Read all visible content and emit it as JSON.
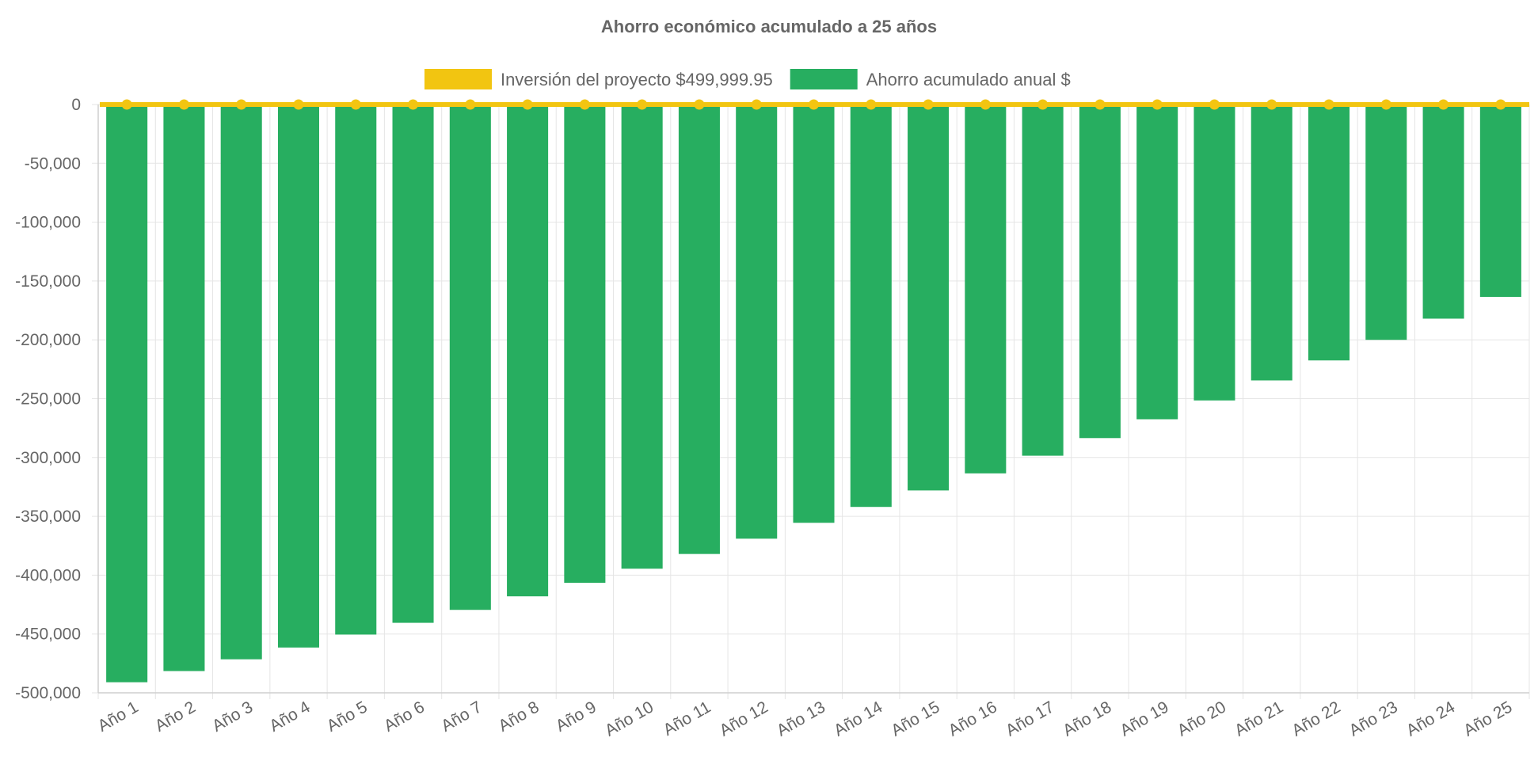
{
  "chart_data": {
    "type": "bar",
    "title": "Ahorro económico acumulado a 25 años",
    "xlabel": "",
    "ylabel": "",
    "categories": [
      "Año 1",
      "Año 2",
      "Año 3",
      "Año 4",
      "Año 5",
      "Año 6",
      "Año 7",
      "Año 8",
      "Año 9",
      "Año 10",
      "Año 11",
      "Año 12",
      "Año 13",
      "Año 14",
      "Año 15",
      "Año 16",
      "Año 17",
      "Año 18",
      "Año 19",
      "Año 20",
      "Año 21",
      "Año 22",
      "Año 23",
      "Año 24",
      "Año 25"
    ],
    "ylim": [
      -500000,
      0
    ],
    "y_ticks": [
      0,
      -50000,
      -100000,
      -150000,
      -200000,
      -250000,
      -300000,
      -350000,
      -400000,
      -450000,
      -500000
    ],
    "y_tick_labels": [
      "0",
      "-50,000",
      "-100,000",
      "-150,000",
      "-200,000",
      "-250,000",
      "-300,000",
      "-350,000",
      "-400,000",
      "-450,000",
      "-500,000"
    ],
    "grid": true,
    "legend_position": "top-center",
    "series": [
      {
        "name": "Inversión del proyecto $499,999.95",
        "type": "line",
        "color": "#f2c511",
        "values": [
          0,
          0,
          0,
          0,
          0,
          0,
          0,
          0,
          0,
          0,
          0,
          0,
          0,
          0,
          0,
          0,
          0,
          0,
          0,
          0,
          0,
          0,
          0,
          0,
          0
        ]
      },
      {
        "name": "Ahorro acumulado anual $",
        "type": "bar",
        "color": "#27ae60",
        "values": [
          -491000,
          -481500,
          -471500,
          -461500,
          -450500,
          -440500,
          -429500,
          -418000,
          -406500,
          -394500,
          -382000,
          -369000,
          -355500,
          -342000,
          -328000,
          -313500,
          -298500,
          -283500,
          -267500,
          -251500,
          -234500,
          -217500,
          -200000,
          -182000,
          -163500
        ]
      }
    ]
  }
}
